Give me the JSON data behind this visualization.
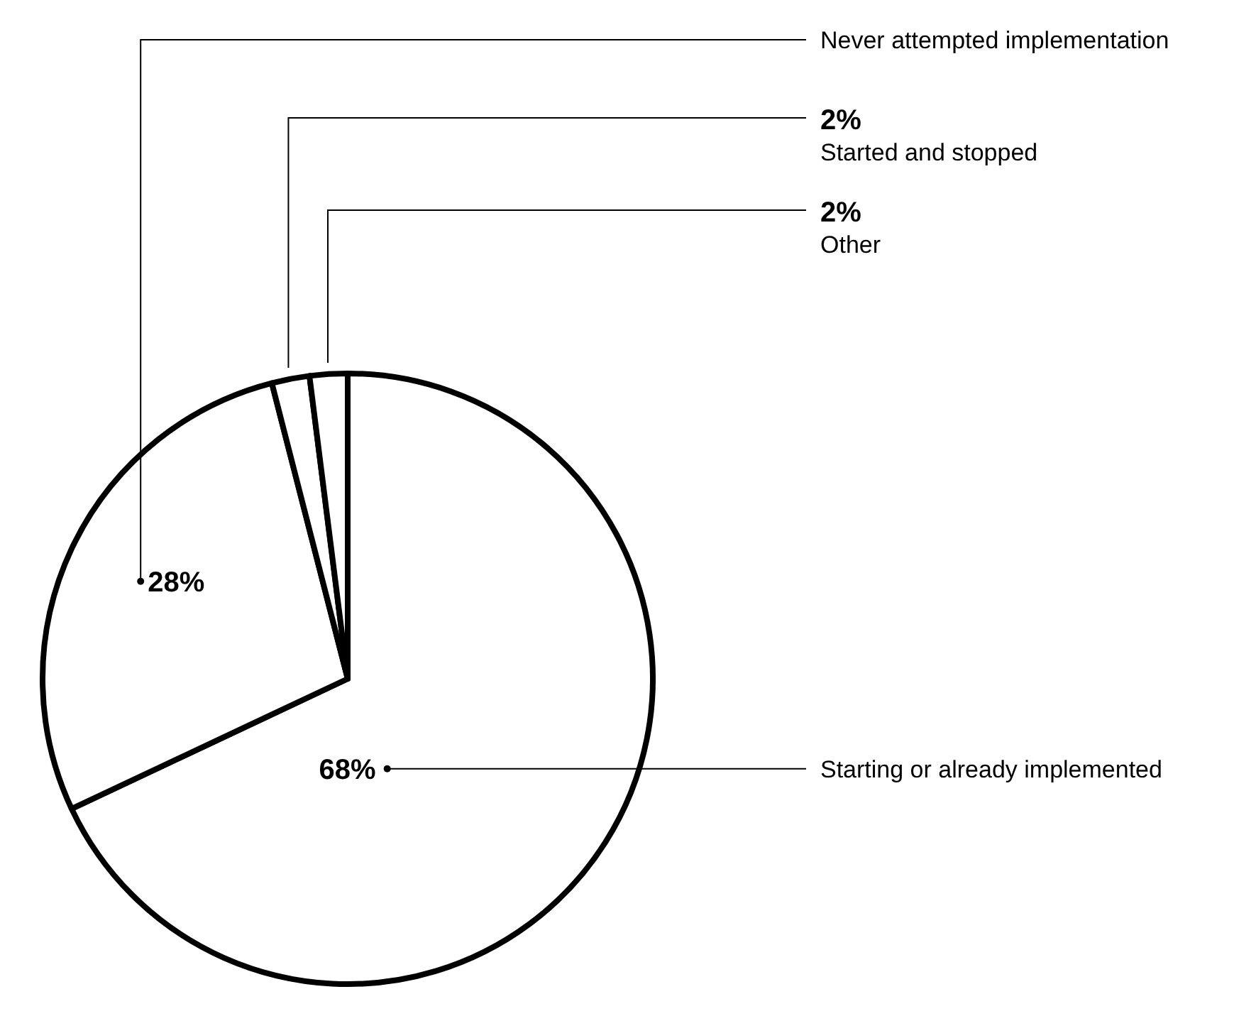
{
  "chart_data": {
    "type": "pie",
    "categories": [
      "Starting or already implemented",
      "Never attempted implementation",
      "Started and stopped",
      "Other"
    ],
    "values": [
      68,
      28,
      2,
      2
    ],
    "colors": [
      "#ffffff",
      "#ffffff",
      "#ffffff",
      "#ffffff"
    ],
    "value_labels": [
      "68%",
      "28%",
      "2%",
      "2%"
    ]
  }
}
